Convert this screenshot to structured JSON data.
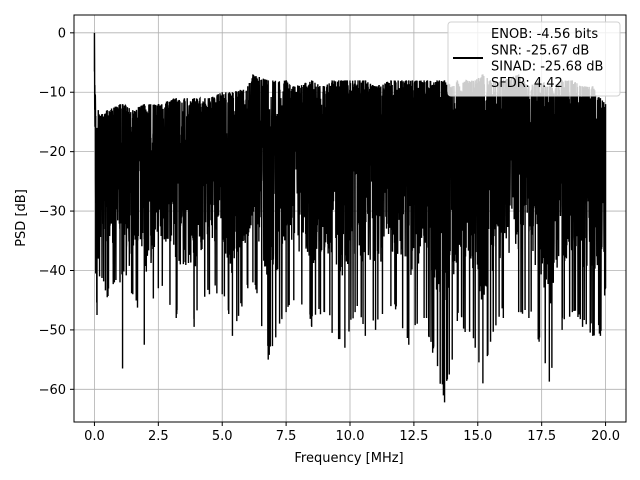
{
  "chart_data": {
    "type": "line",
    "title": "",
    "xlabel": "Frequency [MHz]",
    "ylabel": "PSD [dB]",
    "xlim": [
      -0.8,
      20.8
    ],
    "ylim": [
      -65.5,
      3
    ],
    "xticks": [
      0.0,
      2.5,
      5.0,
      7.5,
      10.0,
      12.5,
      15.0,
      17.5,
      20.0
    ],
    "xtick_labels": [
      "0.0",
      "2.5",
      "5.0",
      "7.5",
      "10.0",
      "12.5",
      "15.0",
      "17.5",
      "20.0"
    ],
    "yticks": [
      0,
      -10,
      -20,
      -30,
      -40,
      -50,
      -60
    ],
    "ytick_labels": [
      "0",
      "−10",
      "−20",
      "−30",
      "−40",
      "−50",
      "−60"
    ],
    "grid": true,
    "legend_position": "top-right",
    "series": [
      {
        "name": "ENOB: -4.56 bits\nSNR: -25.67 dB\nSINAD: -25.68 dB\nSFDR: 4.42",
        "color": "#000000",
        "x": [
          0.0,
          0.05,
          0.1,
          0.15,
          0.2,
          0.5,
          1.0,
          1.1,
          1.5,
          1.95,
          2.5,
          3.2,
          3.9,
          4.5,
          5.0,
          5.4,
          6.0,
          6.2,
          6.8,
          7.5,
          7.8,
          8.5,
          9.0,
          9.3,
          9.8,
          10.2,
          10.6,
          11.0,
          11.6,
          12.3,
          12.9,
          13.7,
          14.0,
          14.2,
          14.9,
          15.2,
          15.5,
          16.0,
          16.6,
          17.0,
          17.4,
          17.8,
          18.3,
          18.7,
          19.1,
          19.5,
          19.8,
          20.0
        ],
        "y_upper": [
          0.0,
          -14,
          -16,
          -13,
          -14,
          -13,
          -12,
          -12,
          -13,
          -12,
          -12,
          -11,
          -11,
          -11,
          -10,
          -10,
          -9,
          -7,
          -8,
          -8,
          -9,
          -8,
          -9,
          -8,
          -8,
          -8,
          -8,
          -9,
          -8,
          -8,
          -8,
          -8,
          -9,
          -8,
          -8,
          -7,
          -8,
          -8,
          -7,
          -9,
          -8,
          -9,
          -8,
          -8,
          -9,
          -9,
          -11,
          -12
        ],
        "y_lower": [
          -6.5,
          -40.5,
          -47.5,
          -38,
          -41,
          -44.5,
          -42,
          -56.5,
          -44,
          -52.5,
          -43,
          -48,
          -49.5,
          -44,
          -44,
          -51,
          -43,
          -42,
          -55,
          -47,
          -45,
          -49.5,
          -47,
          -50.5,
          -53,
          -47,
          -51,
          -50,
          -46,
          -52.5,
          -48,
          -62.2,
          -55,
          -48.5,
          -53,
          -59,
          -52,
          -48,
          -47,
          -48,
          -52,
          -58.7,
          -50,
          -47,
          -49.5,
          -51,
          -51,
          -43
        ]
      }
    ]
  }
}
